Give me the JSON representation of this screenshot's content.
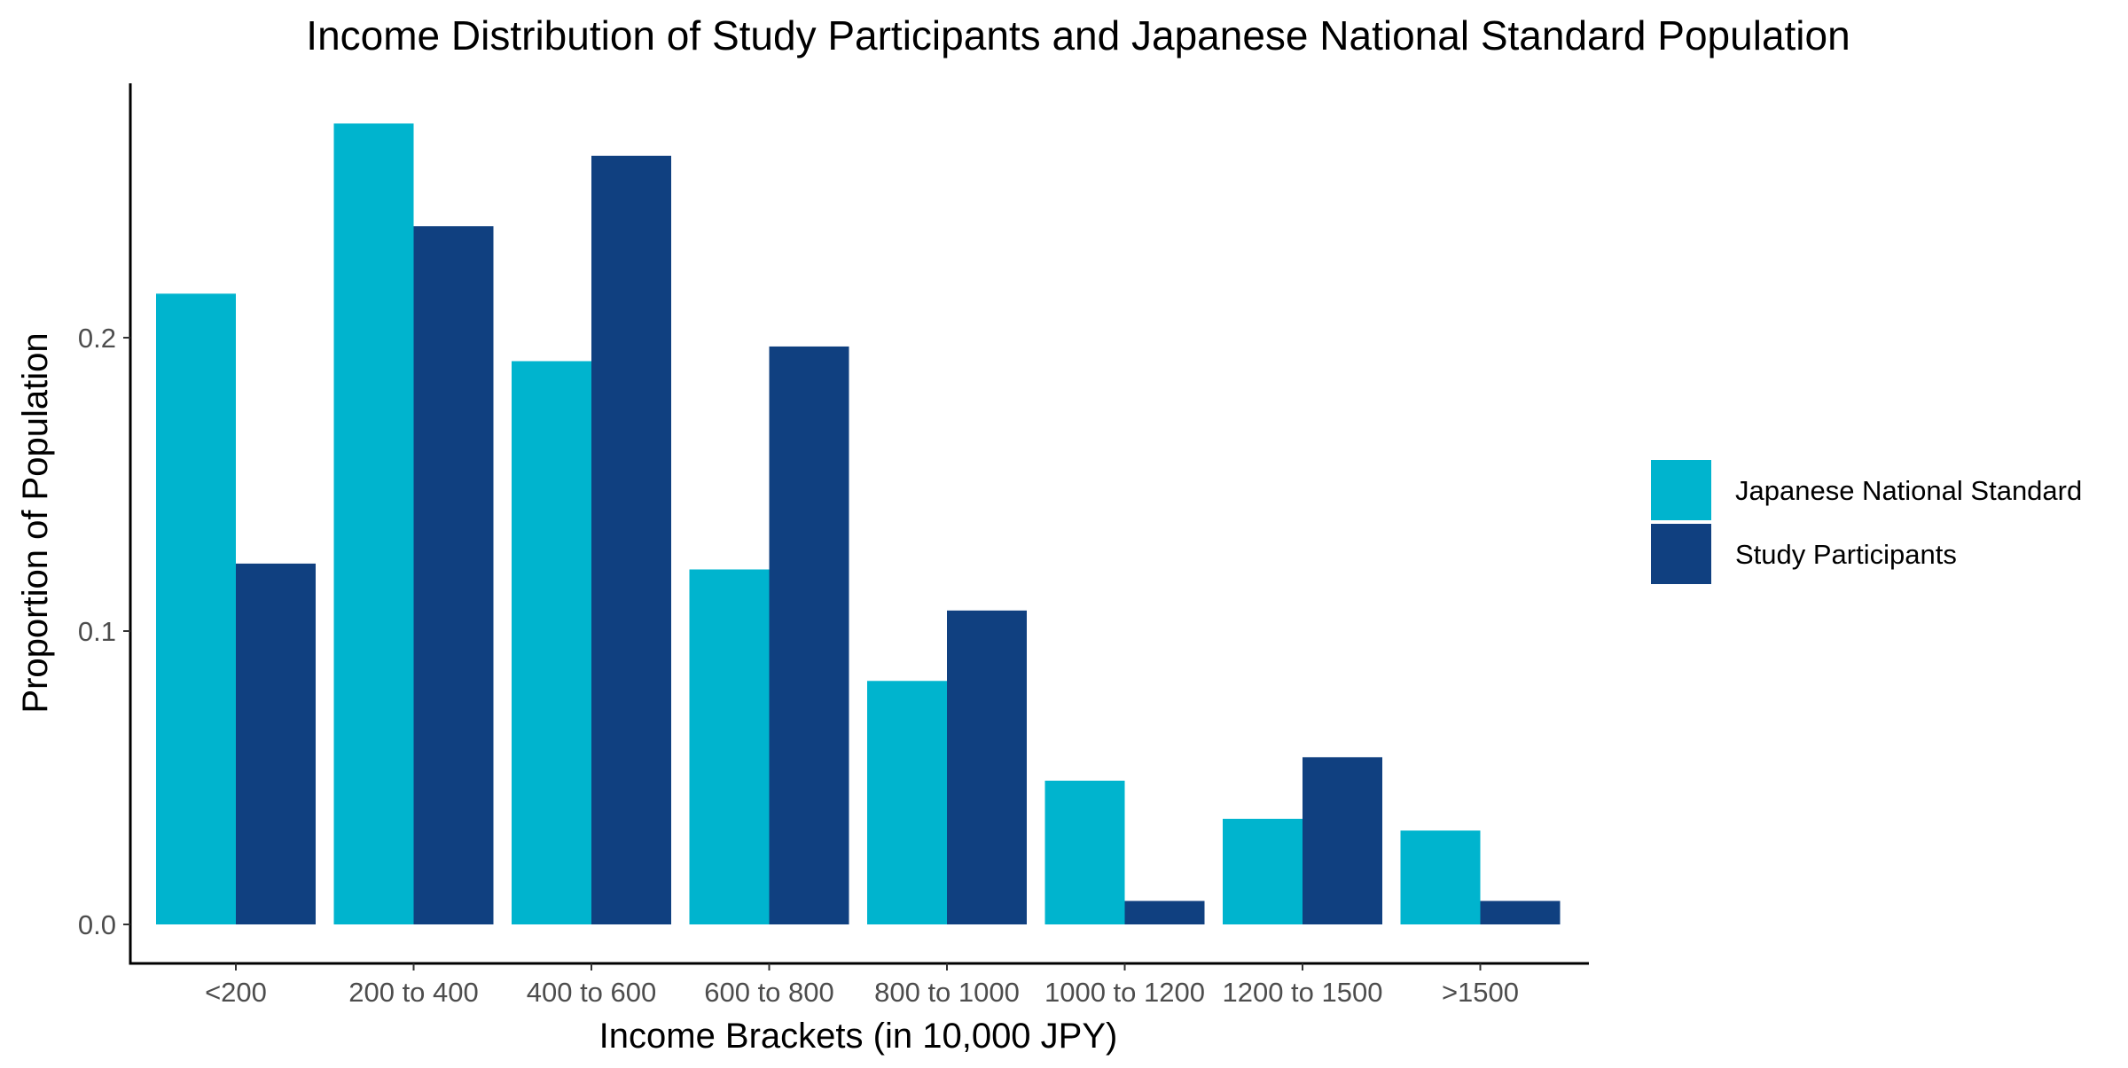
{
  "chart_data": {
    "type": "bar",
    "title": "Income Distribution of Study Participants and Japanese National Standard Population",
    "xlabel": "Income Brackets (in 10,000 JPY)",
    "ylabel": "Proportion of Population",
    "categories": [
      "<200",
      "200 to 400",
      "400 to 600",
      "600 to 800",
      "800 to 1000",
      "1000 to 1200",
      "1200 to 1500",
      ">1500"
    ],
    "series": [
      {
        "name": "Japanese National Standard",
        "color": "#00B4CE",
        "values": [
          0.215,
          0.273,
          0.192,
          0.121,
          0.083,
          0.049,
          0.036,
          0.032
        ]
      },
      {
        "name": "Study Participants",
        "color": "#104080",
        "values": [
          0.123,
          0.238,
          0.262,
          0.197,
          0.107,
          0.008,
          0.057,
          0.008
        ]
      }
    ],
    "ylim": [
      0,
      0.2856
    ],
    "yticks": [
      0.0,
      0.1,
      0.2
    ],
    "ytick_labels": [
      "0.0",
      "0.1",
      "0.2"
    ],
    "grid": false,
    "legend_position": "right"
  }
}
